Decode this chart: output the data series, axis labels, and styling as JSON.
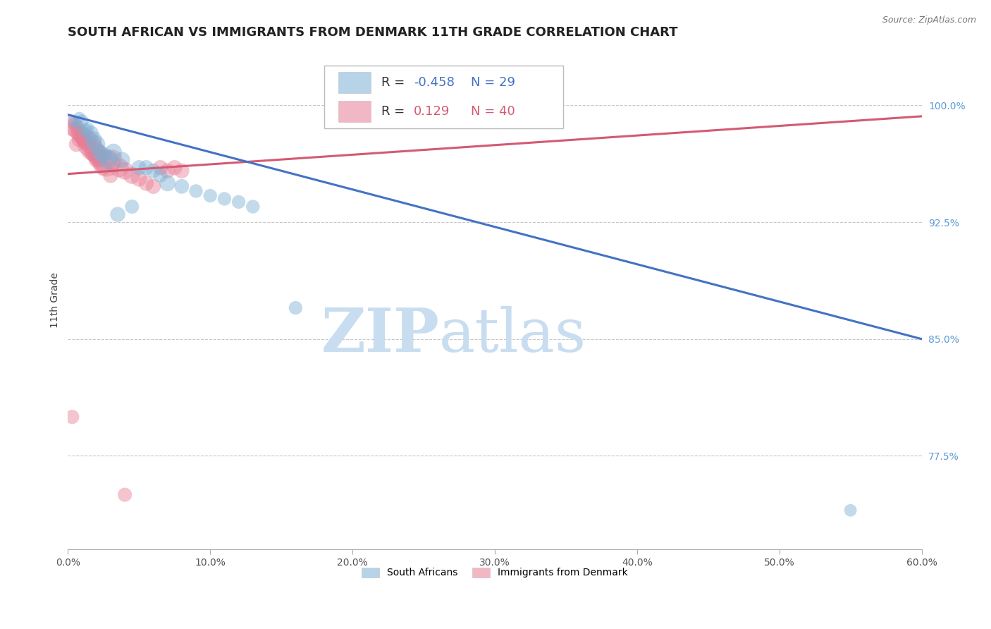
{
  "title": "SOUTH AFRICAN VS IMMIGRANTS FROM DENMARK 11TH GRADE CORRELATION CHART",
  "source": "Source: ZipAtlas.com",
  "ylabel": "11th Grade",
  "xlim": [
    0.0,
    0.6
  ],
  "ylim": [
    0.715,
    1.035
  ],
  "yticks": [
    0.775,
    0.85,
    0.925,
    1.0
  ],
  "ytick_labels": [
    "77.5%",
    "85.0%",
    "92.5%",
    "100.0%"
  ],
  "xticks": [
    0.0,
    0.1,
    0.2,
    0.3,
    0.4,
    0.5,
    0.6
  ],
  "xtick_labels": [
    "0.0%",
    "10.0%",
    "20.0%",
    "30.0%",
    "40.0%",
    "50.0%",
    "60.0%"
  ],
  "blue_R": -0.458,
  "blue_N": 29,
  "pink_R": 0.129,
  "pink_N": 40,
  "blue_color": "#7bafd4",
  "pink_color": "#e87d96",
  "blue_line_color": "#4472c4",
  "pink_line_color": "#d45a72",
  "watermark_zip": "ZIP",
  "watermark_atlas": "atlas",
  "watermark_color": "#c8ddf0",
  "blue_scatter_x": [
    0.004,
    0.006,
    0.008,
    0.01,
    0.012,
    0.014,
    0.016,
    0.018,
    0.02,
    0.022,
    0.025,
    0.028,
    0.032,
    0.038,
    0.05,
    0.055,
    0.06,
    0.065,
    0.07,
    0.08,
    0.09,
    0.1,
    0.11,
    0.12,
    0.13,
    0.035,
    0.045,
    0.16,
    0.55
  ],
  "blue_scatter_y": [
    0.99,
    0.988,
    0.992,
    0.99,
    0.984,
    0.985,
    0.982,
    0.978,
    0.975,
    0.97,
    0.968,
    0.965,
    0.97,
    0.965,
    0.96,
    0.96,
    0.958,
    0.955,
    0.95,
    0.948,
    0.945,
    0.942,
    0.94,
    0.938,
    0.935,
    0.93,
    0.935,
    0.87,
    0.74
  ],
  "blue_scatter_size": [
    40,
    40,
    50,
    60,
    70,
    60,
    90,
    100,
    110,
    90,
    100,
    120,
    100,
    90,
    80,
    80,
    75,
    70,
    90,
    75,
    65,
    65,
    65,
    65,
    65,
    80,
    70,
    65,
    55
  ],
  "pink_scatter_x": [
    0.003,
    0.005,
    0.007,
    0.009,
    0.011,
    0.013,
    0.015,
    0.017,
    0.019,
    0.021,
    0.024,
    0.027,
    0.031,
    0.036,
    0.04,
    0.045,
    0.05,
    0.055,
    0.06,
    0.065,
    0.07,
    0.075,
    0.08,
    0.025,
    0.03,
    0.003,
    0.005,
    0.007,
    0.009,
    0.011,
    0.013,
    0.015,
    0.017,
    0.019,
    0.006,
    0.008,
    0.003,
    0.02,
    0.04,
    0.022
  ],
  "pink_scatter_y": [
    0.99,
    0.988,
    0.985,
    0.982,
    0.98,
    0.978,
    0.975,
    0.972,
    0.97,
    0.968,
    0.965,
    0.963,
    0.965,
    0.96,
    0.958,
    0.955,
    0.953,
    0.95,
    0.948,
    0.96,
    0.958,
    0.96,
    0.958,
    0.96,
    0.955,
    0.985,
    0.984,
    0.982,
    0.98,
    0.978,
    0.976,
    0.974,
    0.97,
    0.968,
    0.975,
    0.978,
    0.8,
    0.965,
    0.75,
    0.965
  ],
  "pink_scatter_size": [
    60,
    70,
    80,
    100,
    120,
    150,
    200,
    180,
    160,
    150,
    170,
    260,
    150,
    130,
    110,
    100,
    90,
    80,
    80,
    80,
    80,
    80,
    80,
    80,
    80,
    80,
    80,
    80,
    80,
    80,
    80,
    80,
    80,
    80,
    80,
    80,
    70,
    80,
    70,
    80
  ],
  "blue_trend_x0": 0.0,
  "blue_trend_y0": 0.994,
  "blue_trend_x1": 0.6,
  "blue_trend_y1": 0.85,
  "pink_trend_x0": 0.0,
  "pink_trend_y0": 0.956,
  "pink_trend_x1": 0.6,
  "pink_trend_y1": 0.993,
  "title_fontsize": 13,
  "axis_label_fontsize": 10,
  "tick_fontsize": 10,
  "legend_fontsize": 13,
  "ytick_color": "#5b9bd5",
  "grid_color": "#c8c8c8"
}
